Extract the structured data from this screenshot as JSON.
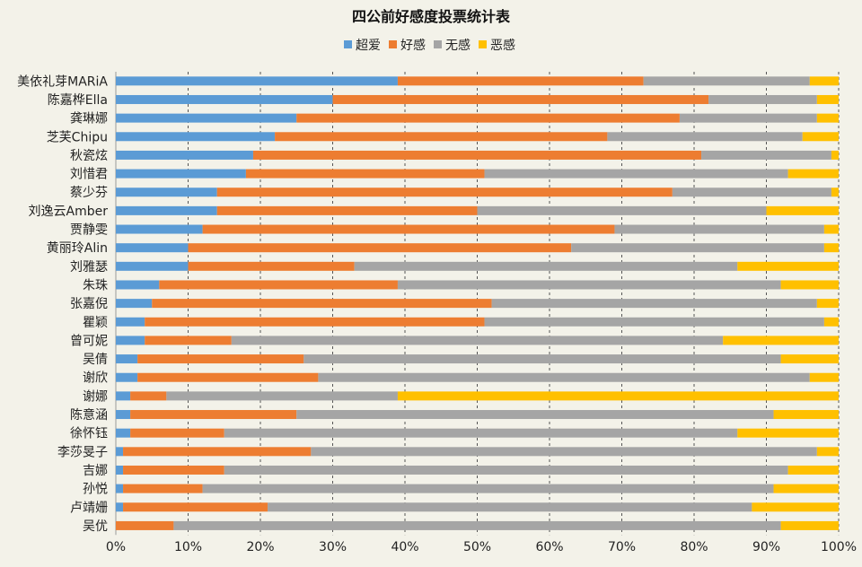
{
  "chart_data": {
    "type": "bar",
    "orientation": "horizontal",
    "stacked": "percent",
    "title": "四公前好感度投票统计表",
    "legend_position": "top",
    "grid": "vertical-dashed",
    "xlim": [
      0,
      100
    ],
    "x_ticks": [
      "0%",
      "10%",
      "20%",
      "30%",
      "40%",
      "50%",
      "60%",
      "70%",
      "80%",
      "90%",
      "100%"
    ],
    "categories": [
      "美依礼芽MARiA",
      "陈嘉桦Ella",
      "龚琳娜",
      "芝芙Chipu",
      "秋瓷炫",
      "刘惜君",
      "蔡少芬",
      "刘逸云Amber",
      "贾静雯",
      "黄丽玲Alin",
      "刘雅瑟",
      "朱珠",
      "张嘉倪",
      "瞿颖",
      "曾可妮",
      "吴倩",
      "谢欣",
      "谢娜",
      "陈意涵",
      "徐怀钰",
      "李莎旻子",
      "吉娜",
      "孙悦",
      "卢靖姗",
      "吴优"
    ],
    "series": [
      {
        "name": "超爱",
        "color": "#5b9bd5",
        "values": [
          39,
          30,
          25,
          22,
          19,
          18,
          14,
          14,
          12,
          10,
          10,
          6,
          5,
          4,
          4,
          3,
          3,
          2,
          2,
          2,
          1,
          1,
          1,
          1,
          0
        ]
      },
      {
        "name": "好感",
        "color": "#ed7d31",
        "values": [
          34,
          52,
          53,
          46,
          62,
          33,
          63,
          36,
          57,
          53,
          23,
          33,
          47,
          47,
          12,
          23,
          25,
          5,
          23,
          13,
          26,
          14,
          11,
          20,
          8
        ]
      },
      {
        "name": "无感",
        "color": "#a5a5a5",
        "values": [
          23,
          15,
          19,
          27,
          18,
          42,
          22,
          40,
          29,
          35,
          53,
          53,
          45,
          47,
          68,
          66,
          68,
          32,
          66,
          71,
          70,
          78,
          79,
          67,
          84
        ]
      },
      {
        "name": "恶感",
        "color": "#ffc000",
        "values": [
          4,
          3,
          3,
          5,
          1,
          7,
          1,
          10,
          2,
          2,
          14,
          8,
          3,
          2,
          16,
          8,
          4,
          61,
          9,
          14,
          3,
          7,
          9,
          12,
          8
        ]
      }
    ]
  }
}
